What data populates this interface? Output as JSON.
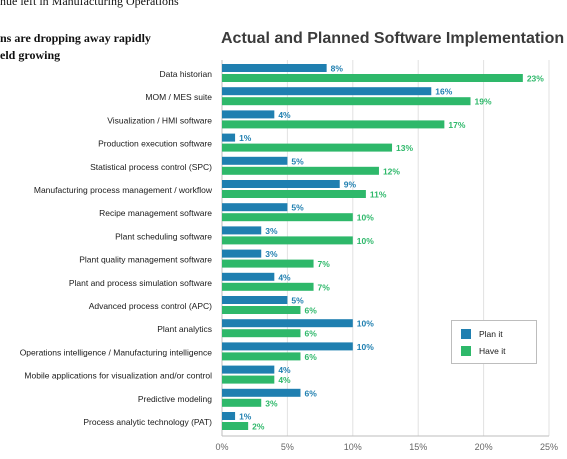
{
  "background_text": {
    "top_line": "nue left in Manufacturing Operations",
    "line1": "ns are dropping away rapidly",
    "line2": "eld growing"
  },
  "colors": {
    "plan": "#1f7fb0",
    "have": "#2eb86a",
    "grid": "#e2e2e2",
    "axis": "#bdbdbd"
  },
  "chart_data": {
    "type": "bar",
    "orientation": "horizontal",
    "title": "Actual and Planned Software Implementation",
    "categories": [
      "Data historian",
      "MOM / MES suite",
      "Visualization / HMI software",
      "Production execution software",
      "Statistical process control (SPC)",
      "Manufacturing process management / workflow",
      "Recipe management software",
      "Plant scheduling software",
      "Plant quality management software",
      "Plant and process simulation software",
      "Advanced process control (APC)",
      "Plant analytics",
      "Operations intelligence / Manufacturing intelligence",
      "Mobile applications for visualization and/or control",
      "Predictive modeling",
      "Process analytic technology (PAT)"
    ],
    "series": [
      {
        "name": "Plan it",
        "values": [
          8,
          16,
          4,
          1,
          5,
          9,
          5,
          3,
          3,
          4,
          5,
          10,
          10,
          4,
          6,
          1
        ]
      },
      {
        "name": "Have it",
        "values": [
          23,
          19,
          17,
          13,
          12,
          11,
          10,
          10,
          7,
          7,
          6,
          6,
          6,
          4,
          3,
          2
        ]
      }
    ],
    "x_ticks": [
      "0%",
      "5%",
      "10%",
      "15%",
      "20%",
      "25%"
    ],
    "xlim": [
      0,
      25
    ],
    "value_suffix": "%",
    "grid": true,
    "legend_position": "bottom-right"
  }
}
